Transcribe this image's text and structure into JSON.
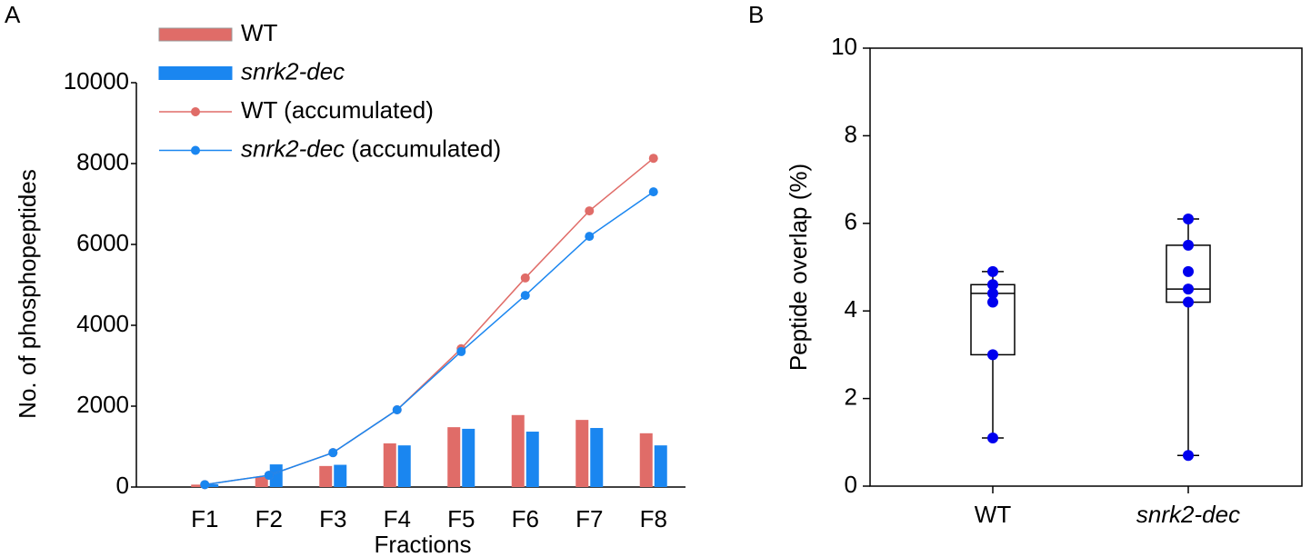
{
  "chart_data": [
    {
      "type": "bar-line",
      "panel_label": "A",
      "y_label": "No. of phosphopeptides",
      "x_label": "Fractions",
      "categories": [
        "F1",
        "F2",
        "F3",
        "F4",
        "F5",
        "F6",
        "F7",
        "F8"
      ],
      "ylim": [
        0,
        10000
      ],
      "yticks": [
        0,
        2000,
        4000,
        6000,
        8000,
        10000
      ],
      "series": [
        {
          "name": "WT",
          "style": "bar",
          "color": "#e06c68",
          "italic": false,
          "values": [
            60,
            250,
            520,
            1080,
            1480,
            1780,
            1660,
            1330
          ]
        },
        {
          "name": "snrk2-dec",
          "style": "bar",
          "color": "#1a86f0",
          "italic": true,
          "values": [
            70,
            560,
            550,
            1030,
            1440,
            1370,
            1460,
            1030
          ]
        },
        {
          "name": "WT (accumulated)",
          "style": "line",
          "color": "#e06c68",
          "italic": false,
          "values": [
            60,
            290,
            850,
            1910,
            3420,
            5170,
            6830,
            8130
          ]
        },
        {
          "name": "snrk2-dec (accumulated)",
          "style": "line",
          "color": "#1a86f0",
          "italic": true,
          "values": [
            60,
            290,
            850,
            1910,
            3350,
            4740,
            6200,
            7300
          ]
        }
      ]
    },
    {
      "type": "box",
      "panel_label": "B",
      "y_label": "Peptide overlap (%)",
      "categories": [
        "WT",
        "snrk2-dec"
      ],
      "category_italic": [
        false,
        true
      ],
      "ylim": [
        0,
        10
      ],
      "yticks": [
        0,
        2,
        4,
        6,
        8,
        10
      ],
      "point_color": "#0000ee",
      "boxes": [
        {
          "whislo": 1.1,
          "q1": 3.0,
          "med": 4.4,
          "q3": 4.6,
          "whishi": 4.9,
          "points": [
            4.9,
            4.6,
            4.4,
            4.2,
            3.0,
            1.1
          ]
        },
        {
          "whislo": 0.7,
          "q1": 4.2,
          "med": 4.5,
          "q3": 5.5,
          "whishi": 6.1,
          "points": [
            6.1,
            5.5,
            4.9,
            4.5,
            4.2,
            0.7
          ]
        }
      ]
    }
  ]
}
